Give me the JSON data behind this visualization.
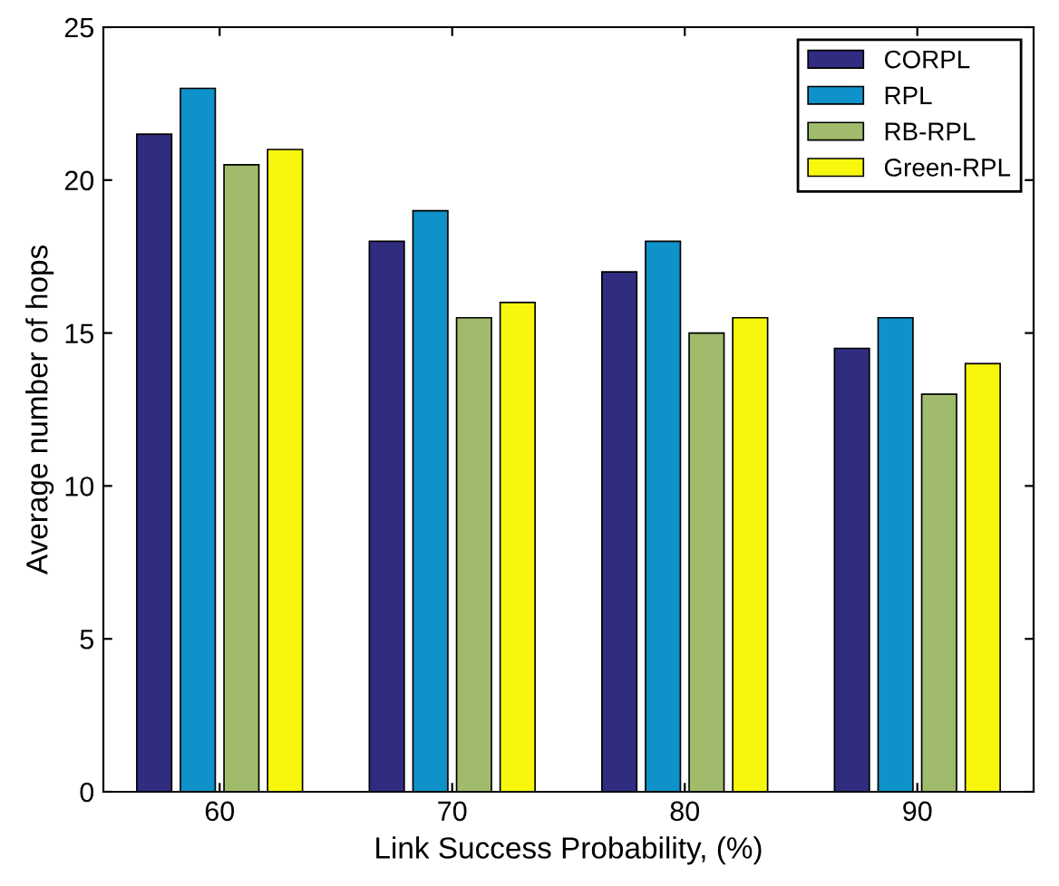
{
  "chart_data": {
    "type": "bar",
    "xlabel": "Link Success Probability, (%)",
    "ylabel": "Average number of hops",
    "categories": [
      "60",
      "70",
      "80",
      "90"
    ],
    "series": [
      {
        "name": "CORPL",
        "color": "#302c80",
        "values": [
          21.5,
          18,
          17,
          14.5
        ]
      },
      {
        "name": "RPL",
        "color": "#0f91c9",
        "values": [
          23,
          19,
          18,
          15.5
        ]
      },
      {
        "name": "RB-RPL",
        "color": "#9fbb6b",
        "values": [
          20.5,
          15.5,
          15,
          13
        ]
      },
      {
        "name": "Green-RPL",
        "color": "#f7f70d",
        "values": [
          21,
          16,
          15.5,
          14
        ]
      }
    ],
    "ylim": [
      0,
      25
    ],
    "yticks": [
      0,
      5,
      10,
      15,
      20,
      25
    ],
    "grid": false,
    "legend": "top right"
  }
}
